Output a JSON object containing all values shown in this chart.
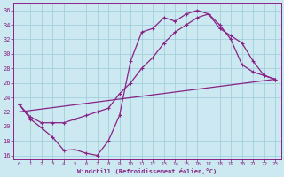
{
  "xlabel": "Windchill (Refroidissement éolien,°C)",
  "xlim": [
    -0.5,
    23.5
  ],
  "ylim": [
    15.5,
    37
  ],
  "xticks": [
    0,
    1,
    2,
    3,
    4,
    5,
    6,
    7,
    8,
    9,
    10,
    11,
    12,
    13,
    14,
    15,
    16,
    17,
    18,
    19,
    20,
    21,
    22,
    23
  ],
  "yticks": [
    16,
    18,
    20,
    22,
    24,
    26,
    28,
    30,
    32,
    34,
    36
  ],
  "background_color": "#cce8f0",
  "grid_color": "#99ccd9",
  "line_color": "#882288",
  "curve1_x": [
    0,
    1,
    2,
    3,
    4,
    5,
    6,
    7,
    8,
    9,
    10,
    11,
    12,
    13,
    14,
    15,
    16,
    17,
    18,
    19,
    20,
    21,
    22,
    23
  ],
  "curve1_y": [
    23,
    21,
    19.8,
    18.5,
    16.7,
    16.8,
    16.3,
    16,
    18,
    21.5,
    29,
    33,
    33.5,
    35,
    34.5,
    35.5,
    36,
    35.5,
    34,
    32,
    28.5,
    27.5,
    27,
    26.5
  ],
  "curve2_x": [
    0,
    1,
    2,
    3,
    4,
    5,
    6,
    7,
    8,
    9,
    10,
    11,
    12,
    13,
    14,
    15,
    16,
    17,
    18,
    19,
    20,
    21,
    22,
    23
  ],
  "curve2_y": [
    23,
    21.3,
    20.5,
    20.5,
    20.5,
    21,
    21.5,
    22,
    22.5,
    24.5,
    26,
    28,
    29.5,
    31.5,
    33,
    34,
    35,
    35.5,
    33.5,
    32.5,
    31.5,
    29,
    27,
    26.5
  ],
  "curve3_x": [
    0,
    23
  ],
  "curve3_y": [
    22,
    26.5
  ]
}
